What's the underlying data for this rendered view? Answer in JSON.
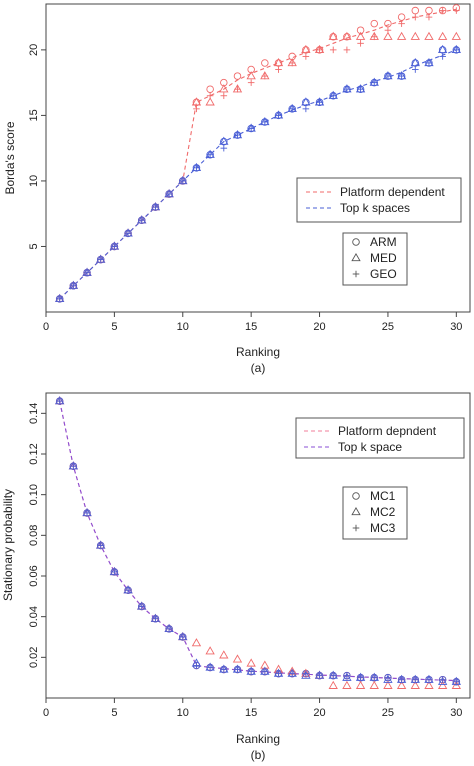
{
  "chart_data": [
    {
      "type": "scatter",
      "panel": "(a)",
      "xlabel": "Ranking",
      "ylabel": "Borda's score",
      "xlim": [
        0,
        31
      ],
      "ylim": [
        0,
        23.5
      ],
      "xticks": [
        0,
        5,
        10,
        15,
        20,
        25,
        30
      ],
      "yticks": [
        5,
        10,
        15,
        20
      ],
      "x": [
        1,
        2,
        3,
        4,
        5,
        6,
        7,
        8,
        9,
        10,
        11,
        12,
        13,
        14,
        15,
        16,
        17,
        18,
        19,
        20,
        21,
        22,
        23,
        24,
        25,
        26,
        27,
        28,
        29,
        30
      ],
      "lines": [
        {
          "name": "Platform dependent",
          "color": "#f06a6a",
          "values": [
            1,
            2,
            3,
            4,
            5,
            6,
            7,
            8,
            9,
            10,
            16,
            16.5,
            17,
            17.7,
            18.2,
            18.6,
            19,
            19.4,
            19.8,
            20.1,
            20.5,
            20.9,
            21.2,
            21.5,
            21.9,
            22.2,
            22.5,
            22.7,
            22.9,
            23.1
          ]
        },
        {
          "name": "Top k spaces",
          "color": "#4a5fd6",
          "values": [
            1,
            2,
            3,
            4,
            5,
            6,
            7,
            8,
            9,
            10,
            11,
            12,
            13,
            13.5,
            14,
            14.5,
            15,
            15.4,
            15.8,
            16.1,
            16.5,
            16.9,
            17.2,
            17.6,
            17.9,
            18.3,
            18.8,
            19.2,
            19.6,
            20
          ]
        }
      ],
      "series": [
        {
          "name": "ARM",
          "marker": "circle",
          "groups": {
            "red": {
              "color": "#f06a6a",
              "values": [
                1,
                2,
                3,
                4,
                5,
                6,
                7,
                8,
                9,
                10,
                16,
                17,
                17.5,
                18,
                18.5,
                19,
                19,
                19.5,
                20,
                20,
                21,
                21,
                21.5,
                22,
                22,
                22.5,
                23,
                23,
                23,
                23.2
              ]
            },
            "blue": {
              "color": "#4a5fd6",
              "values": [
                1,
                2,
                3,
                4,
                5,
                6,
                7,
                8,
                9,
                10,
                11,
                12,
                13,
                13.5,
                14,
                14.5,
                15,
                15.5,
                16,
                16,
                16.5,
                17,
                17,
                17.5,
                18,
                18,
                19,
                19,
                20,
                20
              ]
            }
          }
        },
        {
          "name": "MED",
          "marker": "triangle",
          "groups": {
            "red": {
              "color": "#f06a6a",
              "values": [
                1,
                2,
                3,
                4,
                5,
                6,
                7,
                8,
                9,
                10,
                16,
                16,
                17,
                17,
                18,
                18,
                19,
                19,
                20,
                20,
                21,
                21,
                21,
                21,
                21,
                21,
                21,
                21,
                21,
                21
              ]
            },
            "blue": {
              "color": "#4a5fd6",
              "values": [
                1,
                2,
                3,
                4,
                5,
                6,
                7,
                8,
                9,
                10,
                11,
                12,
                13,
                13.5,
                14,
                14.5,
                15,
                15.5,
                16,
                16,
                16.5,
                17,
                17,
                17.5,
                18,
                18,
                19,
                19,
                20,
                20
              ]
            }
          }
        },
        {
          "name": "GEO",
          "marker": "plus",
          "groups": {
            "red": {
              "color": "#f06a6a",
              "values": [
                1,
                2,
                3,
                4,
                5,
                6,
                7,
                8,
                9,
                10,
                15.5,
                16.5,
                16.5,
                17,
                17.5,
                18,
                18.5,
                19,
                19.5,
                20,
                20,
                20,
                20.5,
                21,
                21.5,
                22,
                22.5,
                22.5,
                23,
                23
              ]
            },
            "blue": {
              "color": "#4a5fd6",
              "values": [
                1,
                2,
                3,
                4,
                5,
                6,
                7,
                8,
                9,
                10,
                11,
                12,
                12.5,
                13.5,
                14,
                14.5,
                15,
                15.5,
                15.5,
                16,
                16.5,
                17,
                17,
                17.5,
                18,
                18,
                18.5,
                19,
                19.5,
                20
              ]
            }
          }
        }
      ],
      "legend_lines_position": "right",
      "legend_markers_position": "right"
    },
    {
      "type": "scatter",
      "panel": "(b)",
      "xlabel": "Ranking",
      "ylabel": "Stationary probability",
      "xlim": [
        0,
        31
      ],
      "ylim": [
        0,
        0.15
      ],
      "xticks": [
        0,
        5,
        10,
        15,
        20,
        25,
        30
      ],
      "yticks": [
        0.02,
        0.04,
        0.06,
        0.08,
        0.1,
        0.12,
        0.14
      ],
      "ytick_labels": [
        "0.02",
        "0.04",
        "0.06",
        "0.08",
        "0.10",
        "0.12",
        "0.14"
      ],
      "x": [
        1,
        2,
        3,
        4,
        5,
        6,
        7,
        8,
        9,
        10,
        11,
        12,
        13,
        14,
        15,
        16,
        17,
        18,
        19,
        20,
        21,
        22,
        23,
        24,
        25,
        26,
        27,
        28,
        29,
        30
      ],
      "lines": [
        {
          "name": "Platform depndent",
          "color": "#f27d9a",
          "values": [
            0.146,
            0.114,
            0.091,
            0.075,
            0.062,
            0.053,
            0.045,
            0.039,
            0.034,
            0.03,
            0.016,
            0.015,
            0.0145,
            0.0138,
            0.0132,
            0.0128,
            0.0124,
            0.012,
            0.0117,
            0.0113,
            0.011,
            0.0107,
            0.0104,
            0.0101,
            0.0098,
            0.0095,
            0.0093,
            0.009,
            0.0088,
            0.0086
          ]
        },
        {
          "name": "Top k space",
          "color": "#8a4fd6",
          "values": [
            0.146,
            0.114,
            0.091,
            0.075,
            0.062,
            0.053,
            0.045,
            0.039,
            0.034,
            0.03,
            0.016,
            0.015,
            0.0145,
            0.0138,
            0.0132,
            0.0128,
            0.0124,
            0.012,
            0.0117,
            0.0113,
            0.011,
            0.0107,
            0.0104,
            0.0101,
            0.0098,
            0.0095,
            0.0093,
            0.009,
            0.0088,
            0.0086
          ]
        }
      ],
      "series": [
        {
          "name": "MC1",
          "marker": "circle",
          "groups": {
            "red": {
              "color": "#f06a6a",
              "values": [
                0.146,
                0.114,
                0.091,
                0.075,
                0.062,
                0.053,
                0.045,
                0.039,
                0.034,
                0.03,
                0.016,
                0.015,
                0.014,
                0.014,
                0.013,
                0.013,
                0.012,
                0.012,
                0.012,
                0.011,
                0.011,
                0.011,
                0.01,
                0.01,
                0.01,
                0.009,
                0.009,
                0.009,
                0.009,
                0.008
              ]
            },
            "blue": {
              "color": "#4a5fd6",
              "values": [
                0.146,
                0.114,
                0.091,
                0.075,
                0.062,
                0.053,
                0.045,
                0.039,
                0.034,
                0.03,
                0.016,
                0.015,
                0.014,
                0.014,
                0.013,
                0.013,
                0.012,
                0.012,
                0.012,
                0.011,
                0.011,
                0.011,
                0.01,
                0.01,
                0.01,
                0.009,
                0.009,
                0.009,
                0.009,
                0.008
              ]
            }
          }
        },
        {
          "name": "MC2",
          "marker": "triangle",
          "groups": {
            "red": {
              "color": "#f06a6a",
              "values": [
                0.146,
                0.114,
                0.091,
                0.075,
                0.062,
                0.053,
                0.045,
                0.039,
                0.034,
                0.03,
                0.027,
                0.023,
                0.021,
                0.019,
                0.017,
                0.016,
                0.014,
                0.013,
                0.012,
                0.011,
                0.006,
                0.006,
                0.006,
                0.006,
                0.006,
                0.006,
                0.006,
                0.006,
                0.006,
                0.006
              ]
            },
            "blue": {
              "color": "#4a5fd6",
              "values": [
                0.146,
                0.114,
                0.091,
                0.075,
                0.062,
                0.053,
                0.045,
                0.039,
                0.034,
                0.03,
                0.017,
                0.015,
                0.014,
                0.014,
                0.013,
                0.013,
                0.012,
                0.012,
                0.011,
                0.011,
                0.011,
                0.01,
                0.01,
                0.01,
                0.009,
                0.009,
                0.009,
                0.009,
                0.008,
                0.008
              ]
            }
          }
        },
        {
          "name": "MC3",
          "marker": "plus",
          "groups": {
            "red": {
              "color": "#f06a6a",
              "values": [
                0.146,
                0.114,
                0.091,
                0.075,
                0.062,
                0.053,
                0.045,
                0.039,
                0.034,
                0.03,
                0.016,
                0.015,
                0.014,
                0.014,
                0.013,
                0.013,
                0.012,
                0.012,
                0.012,
                0.011,
                0.011,
                0.011,
                0.01,
                0.01,
                0.01,
                0.009,
                0.009,
                0.009,
                0.009,
                0.008
              ]
            },
            "blue": {
              "color": "#4a5fd6",
              "values": [
                0.146,
                0.114,
                0.091,
                0.075,
                0.062,
                0.053,
                0.045,
                0.039,
                0.034,
                0.03,
                0.016,
                0.015,
                0.014,
                0.014,
                0.013,
                0.013,
                0.012,
                0.012,
                0.012,
                0.011,
                0.011,
                0.011,
                0.01,
                0.01,
                0.01,
                0.009,
                0.009,
                0.009,
                0.009,
                0.008
              ]
            }
          }
        }
      ],
      "legend_lines_position": "top-right",
      "legend_markers_position": "right"
    }
  ]
}
